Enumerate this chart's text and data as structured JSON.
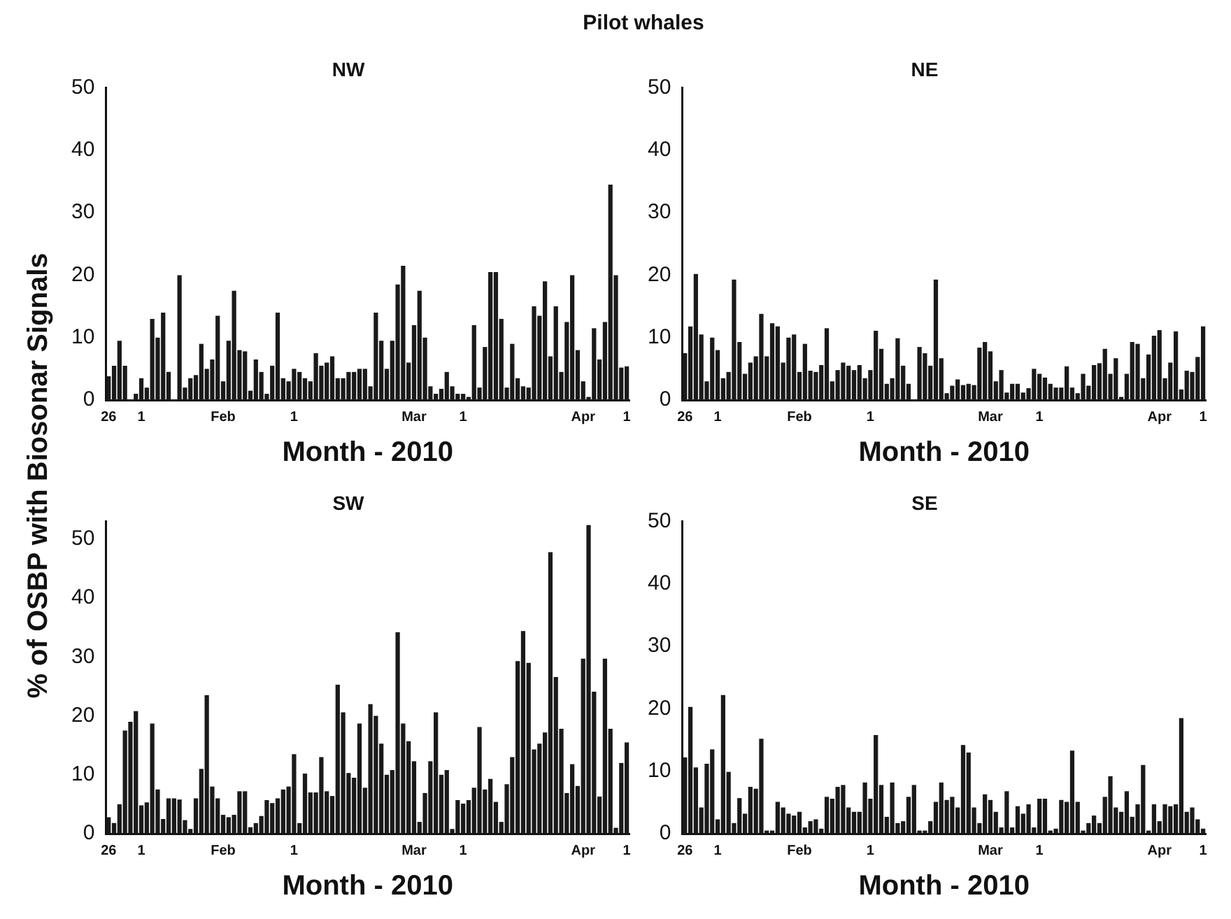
{
  "chart_data": [
    {
      "type": "bar",
      "title": "NW",
      "annotations": [
        "Pilot whales"
      ],
      "ylabel": "% of OSBP with Biosonar Signals",
      "xlabel": "Month - 2010",
      "color": "#1a1a1a",
      "ylim": [
        0,
        50
      ],
      "yticks": [
        0,
        10,
        20,
        30,
        40,
        50
      ],
      "categories": [
        "26",
        null,
        null,
        null,
        null,
        null,
        "1",
        null,
        null,
        null,
        null,
        null,
        null,
        null,
        null,
        null,
        null,
        null,
        null,
        null,
        null,
        "Feb",
        null,
        null,
        null,
        null,
        null,
        null,
        null,
        null,
        null,
        null,
        null,
        null,
        "1",
        null,
        null,
        null,
        null,
        null,
        null,
        null,
        null,
        null,
        null,
        null,
        null,
        null,
        null,
        null,
        null,
        null,
        null,
        null,
        null,
        null,
        "Mar",
        null,
        null,
        null,
        null,
        null,
        null,
        null,
        null,
        "1",
        null,
        null,
        null,
        null,
        null,
        null,
        null,
        null,
        null,
        null,
        null,
        null,
        null,
        null,
        null,
        null,
        null,
        null,
        null,
        null,
        null,
        "Apr",
        null,
        null,
        null,
        null,
        null,
        null,
        null,
        "1"
      ],
      "values": [
        3.8,
        5.5,
        9.5,
        5.5,
        0,
        1,
        3.5,
        2,
        13,
        10,
        14,
        4.5,
        0,
        20,
        2,
        3.5,
        4,
        9,
        5,
        6.5,
        13.5,
        3,
        9.5,
        17.5,
        8,
        7.8,
        1.5,
        6.5,
        4.5,
        1,
        5.5,
        14,
        3.5,
        3,
        5,
        4.5,
        3.5,
        3,
        7.5,
        5.5,
        6,
        7,
        3.5,
        3.5,
        4.5,
        4.5,
        5,
        5,
        2.2,
        14,
        9.5,
        5,
        9.5,
        18.5,
        21.5,
        6,
        12,
        17.5,
        10,
        2.2,
        1,
        1.8,
        4.5,
        2.2,
        1,
        1,
        0.5,
        12,
        2,
        8.5,
        20.5,
        20.5,
        13,
        2,
        9,
        3.5,
        2.2,
        2,
        15,
        13.5,
        19,
        7,
        15,
        4.5,
        12.5,
        20,
        8,
        3,
        0.5,
        11.5,
        6.5,
        12.5,
        34.5,
        20,
        5.2,
        5.4
      ]
    },
    {
      "type": "bar",
      "title": "NE",
      "xlabel": "Month - 2010",
      "color": "#1a1a1a",
      "ylim": [
        0,
        50
      ],
      "yticks": [
        0,
        10,
        20,
        30,
        40,
        50
      ],
      "categories": [
        "26",
        null,
        null,
        null,
        null,
        null,
        "1",
        null,
        null,
        null,
        null,
        null,
        null,
        null,
        null,
        null,
        null,
        null,
        null,
        null,
        null,
        "Feb",
        null,
        null,
        null,
        null,
        null,
        null,
        null,
        null,
        null,
        null,
        null,
        null,
        "1",
        null,
        null,
        null,
        null,
        null,
        null,
        null,
        null,
        null,
        null,
        null,
        null,
        null,
        null,
        null,
        null,
        null,
        null,
        null,
        null,
        null,
        "Mar",
        null,
        null,
        null,
        null,
        null,
        null,
        null,
        null,
        "1",
        null,
        null,
        null,
        null,
        null,
        null,
        null,
        null,
        null,
        null,
        null,
        null,
        null,
        null,
        null,
        null,
        null,
        null,
        null,
        null,
        null,
        "Apr",
        null,
        null,
        null,
        null,
        null,
        null,
        null,
        "1"
      ],
      "values": [
        7.5,
        11.8,
        20.2,
        10.5,
        3,
        10,
        8,
        3.5,
        4.5,
        19.3,
        9.3,
        4.2,
        6,
        7,
        13.8,
        7,
        12.3,
        11.8,
        6,
        10,
        10.5,
        4.5,
        9,
        4.7,
        4.5,
        5.6,
        11.5,
        3,
        4.8,
        6,
        5.5,
        4.8,
        5.6,
        3.5,
        4.8,
        11.1,
        8.2,
        2.6,
        3.5,
        9.9,
        5.5,
        2.6,
        0,
        8.5,
        7.5,
        5.5,
        19.3,
        6.7,
        1.1,
        2.3,
        3.3,
        2.4,
        2.6,
        2.4,
        8.4,
        9.3,
        7.8,
        3,
        4.8,
        1.2,
        2.6,
        2.6,
        1.2,
        1.9,
        5,
        4.2,
        3.6,
        2.6,
        2,
        2,
        5.4,
        2,
        1.1,
        4.2,
        2.3,
        5.6,
        5.9,
        8.2,
        4.2,
        6.7,
        0.5,
        4.2,
        9.3,
        9,
        3.5,
        7.3,
        10.3,
        11.2,
        3.5,
        6,
        11,
        1.7,
        4.7,
        4.5,
        6.9,
        11.8
      ]
    },
    {
      "type": "bar",
      "title": "SW",
      "xlabel": "Month - 2010",
      "color": "#1a1a1a",
      "ylim": [
        0,
        53
      ],
      "yticks": [
        0,
        10,
        20,
        30,
        40,
        50
      ],
      "categories": [
        "26",
        null,
        null,
        null,
        null,
        null,
        "1",
        null,
        null,
        null,
        null,
        null,
        null,
        null,
        null,
        null,
        null,
        null,
        null,
        null,
        null,
        "Feb",
        null,
        null,
        null,
        null,
        null,
        null,
        null,
        null,
        null,
        null,
        null,
        null,
        "1",
        null,
        null,
        null,
        null,
        null,
        null,
        null,
        null,
        null,
        null,
        null,
        null,
        null,
        null,
        null,
        null,
        null,
        null,
        null,
        null,
        null,
        "Mar",
        null,
        null,
        null,
        null,
        null,
        null,
        null,
        null,
        "1",
        null,
        null,
        null,
        null,
        null,
        null,
        null,
        null,
        null,
        null,
        null,
        null,
        null,
        null,
        null,
        null,
        null,
        null,
        null,
        null,
        null,
        "Apr",
        null,
        null,
        null,
        null,
        null,
        null,
        null,
        "1"
      ],
      "values": [
        2.8,
        1.8,
        5,
        17.5,
        19,
        20.8,
        4.8,
        5.3,
        18.7,
        7.5,
        2.5,
        6,
        6,
        5.8,
        2.3,
        0.8,
        6,
        11,
        23.5,
        8,
        6,
        3.2,
        2.8,
        3.2,
        7.2,
        7.2,
        1.1,
        1.8,
        3,
        5.7,
        5.2,
        6,
        7.5,
        8,
        13.5,
        1.8,
        10.2,
        7,
        7,
        13,
        7.2,
        6.4,
        25.3,
        20.6,
        10.3,
        9.5,
        18.7,
        7.8,
        22,
        20,
        15.3,
        10,
        10.8,
        34.2,
        18.7,
        15.7,
        12.3,
        2,
        6.9,
        12.3,
        20.6,
        10,
        10.8,
        0.8,
        5.7,
        5.1,
        5.7,
        7.8,
        18.1,
        7.5,
        9.3,
        5.4,
        2,
        8.4,
        13,
        29.3,
        34.4,
        29,
        14.3,
        15.3,
        17.2,
        47.8,
        26.6,
        17.8,
        6.9,
        11.8,
        8.1,
        29.7,
        52.4,
        24.1,
        6.3,
        29.7,
        17.8,
        1,
        12,
        15.5
      ]
    },
    {
      "type": "bar",
      "title": "SE",
      "xlabel": "Month - 2010",
      "color": "#1a1a1a",
      "ylim": [
        0,
        50
      ],
      "yticks": [
        0,
        10,
        20,
        30,
        40,
        50
      ],
      "categories": [
        "26",
        null,
        null,
        null,
        null,
        null,
        "1",
        null,
        null,
        null,
        null,
        null,
        null,
        null,
        null,
        null,
        null,
        null,
        null,
        null,
        null,
        "Feb",
        null,
        null,
        null,
        null,
        null,
        null,
        null,
        null,
        null,
        null,
        null,
        null,
        "1",
        null,
        null,
        null,
        null,
        null,
        null,
        null,
        null,
        null,
        null,
        null,
        null,
        null,
        null,
        null,
        null,
        null,
        null,
        null,
        null,
        null,
        "Mar",
        null,
        null,
        null,
        null,
        null,
        null,
        null,
        null,
        "1",
        null,
        null,
        null,
        null,
        null,
        null,
        null,
        null,
        null,
        null,
        null,
        null,
        null,
        null,
        null,
        null,
        null,
        null,
        null,
        null,
        null,
        "Apr",
        null,
        null,
        null,
        null,
        null,
        null,
        null,
        "1"
      ],
      "values": [
        12.2,
        20.3,
        10.6,
        4.2,
        11.2,
        13.5,
        2.3,
        22.2,
        9.9,
        1.7,
        5.7,
        3.2,
        7.5,
        7.2,
        15.2,
        0.5,
        0.5,
        5.1,
        4.2,
        3.2,
        2.9,
        3.5,
        1,
        2,
        2.3,
        0.8,
        5.9,
        5.6,
        7.5,
        7.8,
        4.2,
        3.5,
        3.5,
        8.2,
        5.6,
        15.8,
        7.8,
        2.7,
        8.2,
        1.7,
        2,
        5.9,
        7.8,
        0.5,
        0.5,
        2,
        5.1,
        8.2,
        5.4,
        5.9,
        4.2,
        14.2,
        13,
        4.2,
        1.7,
        6.3,
        5.4,
        3.5,
        1,
        6.8,
        1,
        4.4,
        3.2,
        4.7,
        1,
        5.6,
        5.6,
        0.5,
        0.8,
        5.4,
        5.1,
        13.3,
        5.1,
        0.5,
        1.7,
        2.9,
        1.7,
        5.9,
        9.2,
        4.2,
        3.5,
        6.8,
        2.7,
        4.7,
        11,
        0.5,
        4.7,
        2,
        4.7,
        4.4,
        4.7,
        18.5,
        3.5,
        4.2,
        2.3,
        0.8
      ]
    }
  ]
}
